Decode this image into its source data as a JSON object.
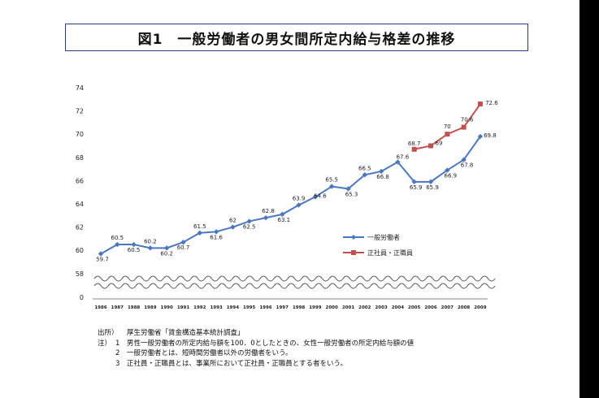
{
  "chart_data": {
    "type": "line",
    "title": "図1　一般労働者の男女間所定内給与格差の推移",
    "x": [
      "1986",
      "1987",
      "1988",
      "1989",
      "1990",
      "1991",
      "1992",
      "1993",
      "1994",
      "1995",
      "1996",
      "1997",
      "1998",
      "1999",
      "2000",
      "2001",
      "2002",
      "2003",
      "2004",
      "2005",
      "2006",
      "2007",
      "2008",
      "2009"
    ],
    "ylim": [
      0,
      74
    ],
    "yticks": [
      0,
      58,
      60,
      62,
      64,
      66,
      68,
      70,
      72,
      74
    ],
    "axis_break": "between 0 and 58",
    "legend_position": "right-middle",
    "series": [
      {
        "name": "一般労働者",
        "color": "#4a78c0",
        "marker": "diamond",
        "values": [
          59.7,
          60.5,
          60.5,
          60.2,
          60.2,
          60.7,
          61.5,
          61.6,
          62.0,
          62.5,
          62.8,
          63.1,
          63.9,
          64.6,
          65.5,
          65.3,
          66.5,
          66.8,
          67.6,
          65.9,
          65.9,
          66.9,
          67.8,
          69.8
        ],
        "labels": [
          "59.7",
          "60.5",
          "60.5",
          "60.2",
          "60.2",
          "60.7",
          "61.5",
          "61.6",
          "62",
          "62.5",
          "62.8",
          "63.1",
          "63.9",
          "64.6",
          "65.5",
          "65.3",
          "66.5",
          "66.8",
          "67.6",
          "65.9",
          "65.9",
          "66.9",
          "67.8",
          "69.8"
        ]
      },
      {
        "name": "正社員・正職員",
        "color": "#c0504d",
        "marker": "square",
        "values": [
          null,
          null,
          null,
          null,
          null,
          null,
          null,
          null,
          null,
          null,
          null,
          null,
          null,
          null,
          null,
          null,
          null,
          null,
          null,
          68.7,
          69.0,
          70.0,
          70.6,
          72.6
        ],
        "labels": [
          null,
          null,
          null,
          null,
          null,
          null,
          null,
          null,
          null,
          null,
          null,
          null,
          null,
          null,
          null,
          null,
          null,
          null,
          null,
          "68.7",
          "69",
          "70",
          "70.6",
          "72.6"
        ]
      }
    ]
  },
  "notes": {
    "source_key": "出所）",
    "source_text": "厚生労働省「賃金構造基本統計調査」",
    "note_key": "注）",
    "items": [
      {
        "num": "1",
        "text": "男性一般労働者の所定内給与額を100．0としたときの、女性一般労働者の所定内給与額の値"
      },
      {
        "num": "2",
        "text": "一般労働者とは、短時間労働者以外の労働者をいう。"
      },
      {
        "num": "3",
        "text": "正社員・正職員とは、事業所において正社員・正職員とする者をいう。"
      }
    ]
  }
}
